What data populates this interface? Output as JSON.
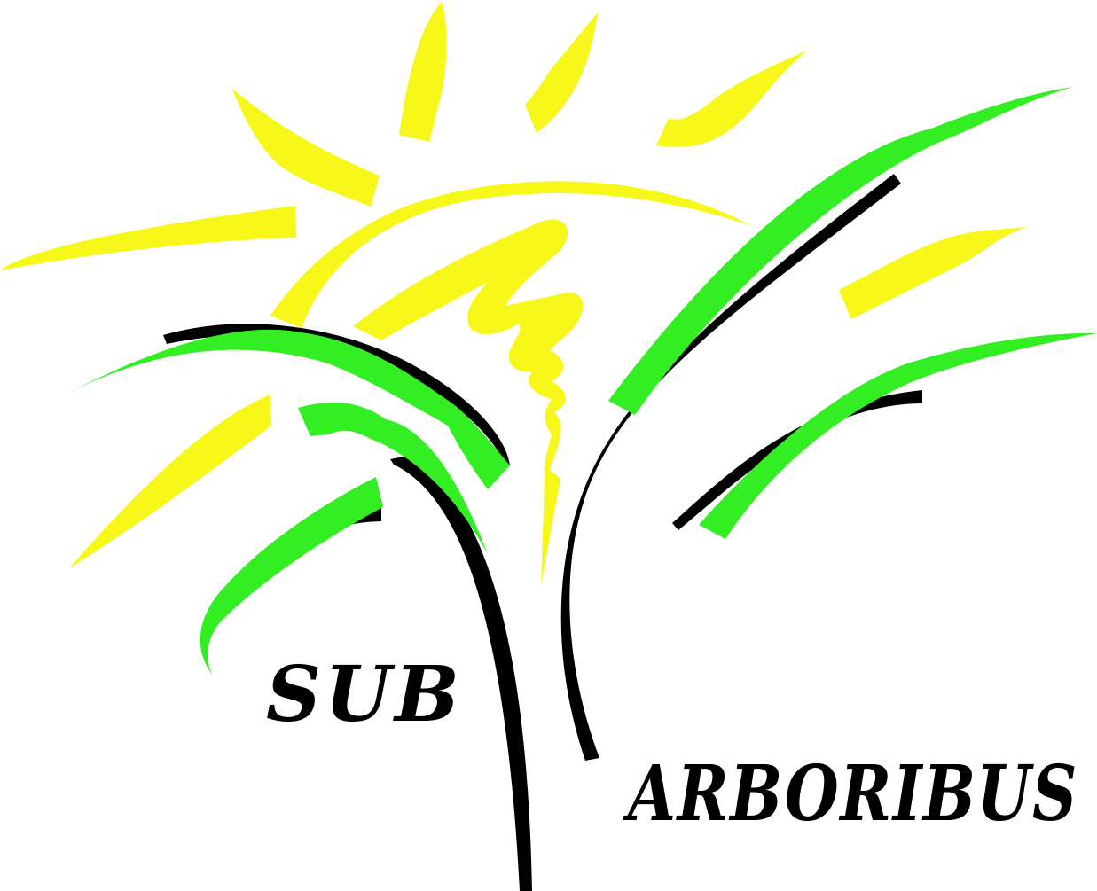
{
  "logo": {
    "word_1": "SUB",
    "word_2": "ARBORIBUS"
  },
  "colors": {
    "sun_yellow": "#f7f71a",
    "leaf_green": "#34ee24",
    "branch_black": "#000000",
    "background": "#ffffff"
  }
}
